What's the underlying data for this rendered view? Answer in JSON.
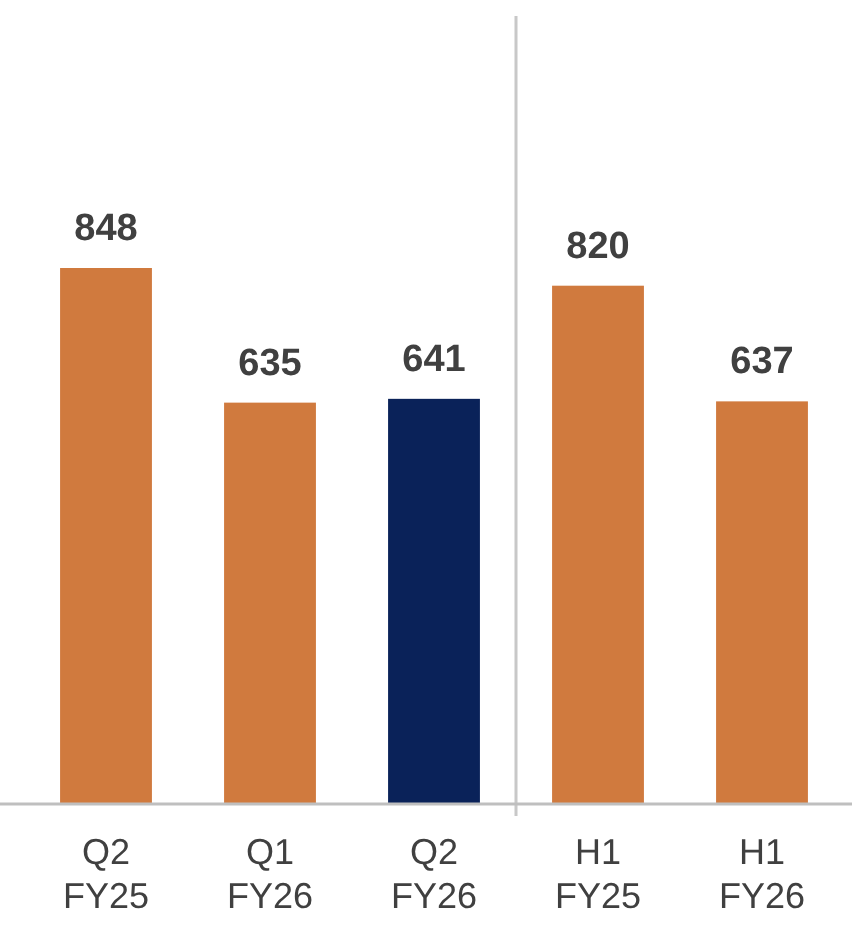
{
  "chart_data": {
    "type": "bar",
    "categories": [
      "Q2 FY25",
      "Q1 FY26",
      "Q2 FY26",
      "H1 FY25",
      "H1 FY26"
    ],
    "values": [
      848,
      635,
      641,
      820,
      637
    ],
    "colors": [
      "#d07a3e",
      "#d07a3e",
      "#0a2259",
      "#d07a3e",
      "#d07a3e"
    ],
    "data_labels": true
  }
}
